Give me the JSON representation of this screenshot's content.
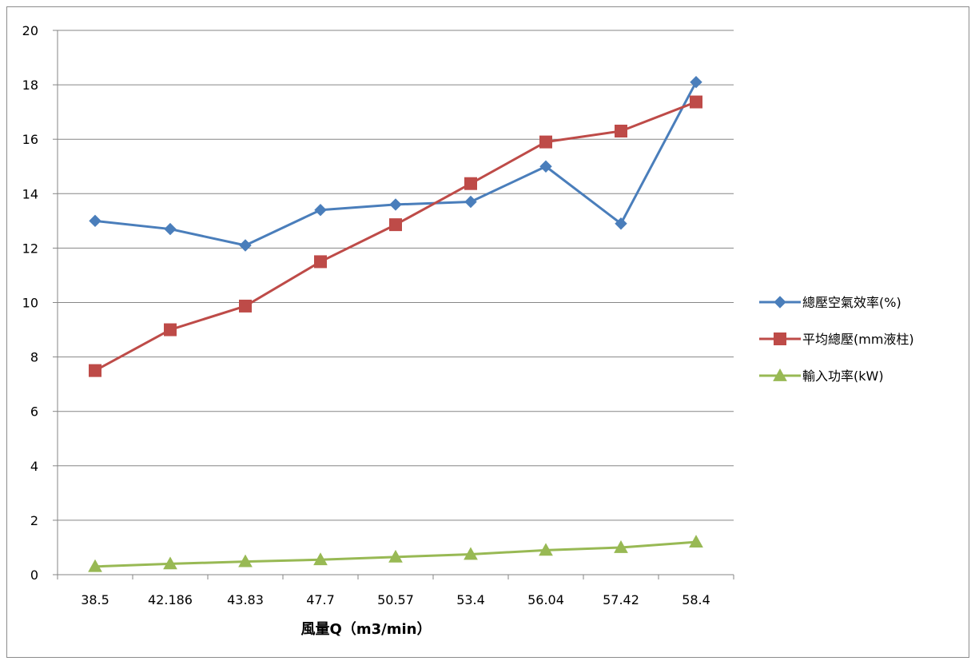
{
  "chart_data": {
    "type": "line",
    "title": "",
    "xlabel": "風量Q（m3/min）",
    "ylabel": "",
    "categories": [
      "38.5",
      "42.186",
      "43.83",
      "47.7",
      "50.57",
      "53.4",
      "56.04",
      "57.42",
      "58.4"
    ],
    "ylim": [
      0,
      20
    ],
    "yticks": [
      "0",
      "2",
      "4",
      "6",
      "8",
      "10",
      "12",
      "14",
      "16",
      "18",
      "20"
    ],
    "grid": "horizontal",
    "legend_position": "right",
    "series": [
      {
        "name": "總壓空氣效率(%)",
        "color": "#4a7ebb",
        "marker": "diamond",
        "values": [
          13.0,
          12.7,
          12.1,
          13.4,
          13.6,
          13.7,
          15.0,
          12.9,
          18.1
        ]
      },
      {
        "name": "平均總壓(mm液柱)",
        "color": "#be4b48",
        "marker": "square",
        "values": [
          7.5,
          9.0,
          9.87,
          11.5,
          12.86,
          14.37,
          15.9,
          16.3,
          17.37
        ]
      },
      {
        "name": "輸入功率(kW)",
        "color": "#98b954",
        "marker": "triangle",
        "values": [
          0.3,
          0.4,
          0.48,
          0.55,
          0.65,
          0.75,
          0.9,
          1.0,
          1.2
        ]
      }
    ]
  }
}
